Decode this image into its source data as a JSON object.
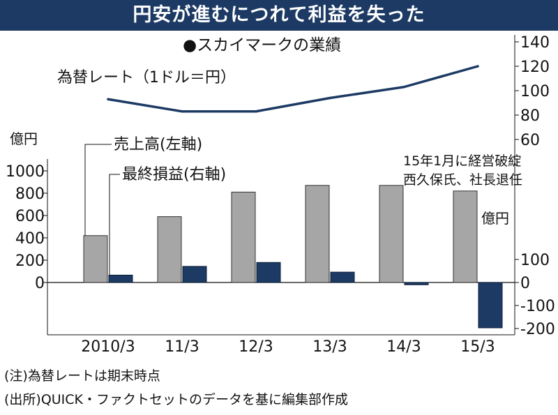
{
  "title": "円安が進むにつれて利益を失った",
  "subtitle": "●スカイマークの業績",
  "notes": [
    "(注)為替レートは期末時点",
    "(出所)QUICK・ファクトセットのデータを基に編集部作成"
  ],
  "chart_data": [
    {
      "type": "line",
      "name": "為替レート（1ドル＝円）",
      "unit": "円",
      "categories": [
        "2010/3",
        "11/3",
        "12/3",
        "13/3",
        "14/3",
        "15/3"
      ],
      "values": [
        93,
        83,
        83,
        94,
        103,
        120
      ],
      "ylim": [
        60,
        140
      ],
      "yticks": [
        60,
        80,
        100,
        120,
        140
      ],
      "axis_position": "right"
    },
    {
      "type": "bar",
      "categories": [
        "2010/3",
        "11/3",
        "12/3",
        "13/3",
        "14/3",
        "15/3"
      ],
      "series": [
        {
          "name": "売上高(左軸)",
          "axis": "left",
          "color": "#a6a6a6",
          "values": [
            420,
            590,
            810,
            870,
            870,
            820
          ]
        },
        {
          "name": "最終損益(右軸)",
          "axis": "right",
          "color": "#1c3a64",
          "values": [
            32,
            70,
            87,
            45,
            -10,
            -197
          ]
        }
      ],
      "left_axis": {
        "label": "億円",
        "ylim": [
          -420,
          1000
        ],
        "yticks": [
          0,
          200,
          400,
          600,
          800,
          1000
        ]
      },
      "right_axis": {
        "label": "億円",
        "ylim": [
          -210,
          200
        ],
        "yticks": [
          -200,
          -100,
          0,
          100
        ]
      },
      "annotation": [
        "15年1月に経営破綻",
        "西久保氏、社長退任"
      ]
    }
  ]
}
